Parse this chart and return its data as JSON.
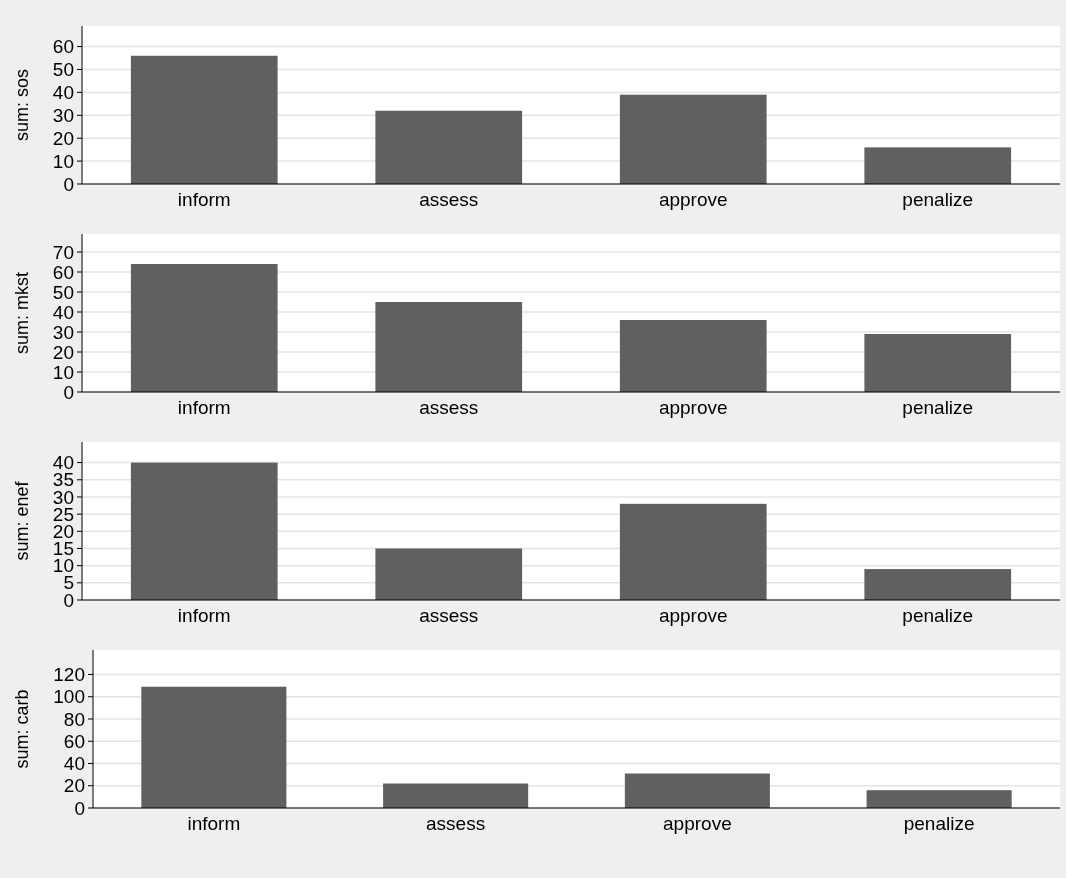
{
  "chart_data": [
    {
      "type": "bar",
      "ylabel": "sum: sos",
      "categories": [
        "inform",
        "assess",
        "approve",
        "penalize"
      ],
      "values": [
        56,
        32,
        39,
        16
      ],
      "color": "#606060",
      "ylim": [
        0,
        69
      ],
      "yticks": [
        0,
        10,
        20,
        30,
        40,
        50,
        60
      ],
      "grid": "y"
    },
    {
      "type": "bar",
      "ylabel": "sum: mkst",
      "categories": [
        "inform",
        "assess",
        "approve",
        "penalize"
      ],
      "values": [
        64,
        45,
        36,
        29
      ],
      "color": "#606060",
      "ylim": [
        0,
        79
      ],
      "yticks": [
        0,
        10,
        20,
        30,
        40,
        50,
        60,
        70
      ],
      "grid": "y"
    },
    {
      "type": "bar",
      "ylabel": "sum: enef",
      "categories": [
        "inform",
        "assess",
        "approve",
        "penalize"
      ],
      "values": [
        40,
        15,
        28,
        9
      ],
      "color": "#606060",
      "ylim": [
        0,
        46
      ],
      "yticks": [
        0,
        5,
        10,
        15,
        20,
        25,
        30,
        35,
        40
      ],
      "grid": "y"
    },
    {
      "type": "bar",
      "ylabel": "sum: carb",
      "categories": [
        "inform",
        "assess",
        "approve",
        "penalize"
      ],
      "values": [
        109,
        22,
        31,
        16
      ],
      "color": "#606060",
      "ylim": [
        0,
        142
      ],
      "yticks": [
        0,
        20,
        40,
        60,
        80,
        100,
        120
      ],
      "grid": "y"
    }
  ]
}
